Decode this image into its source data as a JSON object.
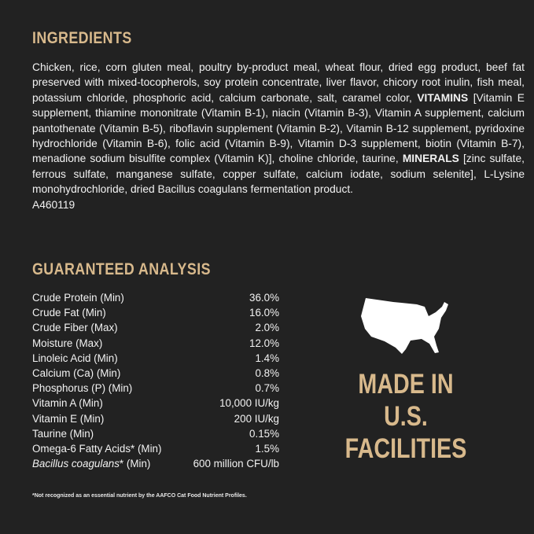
{
  "ingredients": {
    "title": "INGREDIENTS",
    "text_part1": "Chicken, rice, corn gluten meal, poultry by-product meal, wheat flour, dried egg product, beef fat preserved with mixed-tocopherols, soy protein concentrate, liver flavor, chicory root inulin, fish meal, potassium chloride, phosphoric acid, calcium carbonate, salt, caramel color, ",
    "vitamins_label": "VITAMINS",
    "text_part2": " [Vitamin E supplement, thiamine mononitrate (Vitamin B-1), niacin (Vitamin B-3), Vitamin A supplement, calcium pantothenate (Vitamin B-5), riboflavin supplement (Vitamin B-2), Vitamin B-12 supplement, pyridoxine hydrochloride (Vitamin B-6), folic acid (Vitamin B-9), Vitamin D-3 supplement, biotin (Vitamin B-7), menadione sodium bisulfite complex (Vitamin K)], choline chloride, taurine, ",
    "minerals_label": "MINERALS",
    "text_part3": " [zinc sulfate, ferrous sulfate, manganese sulfate, copper sulfate, calcium iodate, sodium selenite], L-Lysine monohydrochloride, dried Bacillus coagulans fermentation product.",
    "code": "A460119"
  },
  "analysis": {
    "title": "GUARANTEED ANALYSIS",
    "rows": [
      {
        "label": "Crude Protein (Min)",
        "value": "36.0%"
      },
      {
        "label": "Crude Fat (Min)",
        "value": "16.0%"
      },
      {
        "label": "Crude Fiber (Max)",
        "value": "2.0%"
      },
      {
        "label": "Moisture (Max)",
        "value": "12.0%"
      },
      {
        "label": "Linoleic Acid (Min)",
        "value": "1.4%"
      },
      {
        "label": "Calcium (Ca) (Min)",
        "value": "0.8%"
      },
      {
        "label": "Phosphorus (P) (Min)",
        "value": "0.7%"
      },
      {
        "label": "Vitamin A (Min)",
        "value": "10,000 IU/kg"
      },
      {
        "label": "Vitamin E (Min)",
        "value": "200 IU/kg"
      },
      {
        "label": "Taurine (Min)",
        "value": "0.15%"
      },
      {
        "label": "Omega-6 Fatty Acids* (Min)",
        "value": "1.5%"
      }
    ],
    "last_row": {
      "label_italic": "Bacillus coagulans",
      "label_rest": "* (Min)",
      "value": "600 million CFU/lb"
    },
    "footnote": "*Not recognized as an essential nutrient by the AAFCO Cat Food Nutrient Profiles."
  },
  "badge": {
    "icon": "usa-map-icon",
    "lines": [
      "MADE IN",
      "U.S.",
      "FACILITIES"
    ]
  },
  "colors": {
    "background": "#222222",
    "accent": "#d8b98c",
    "text": "#f2f2f2"
  }
}
